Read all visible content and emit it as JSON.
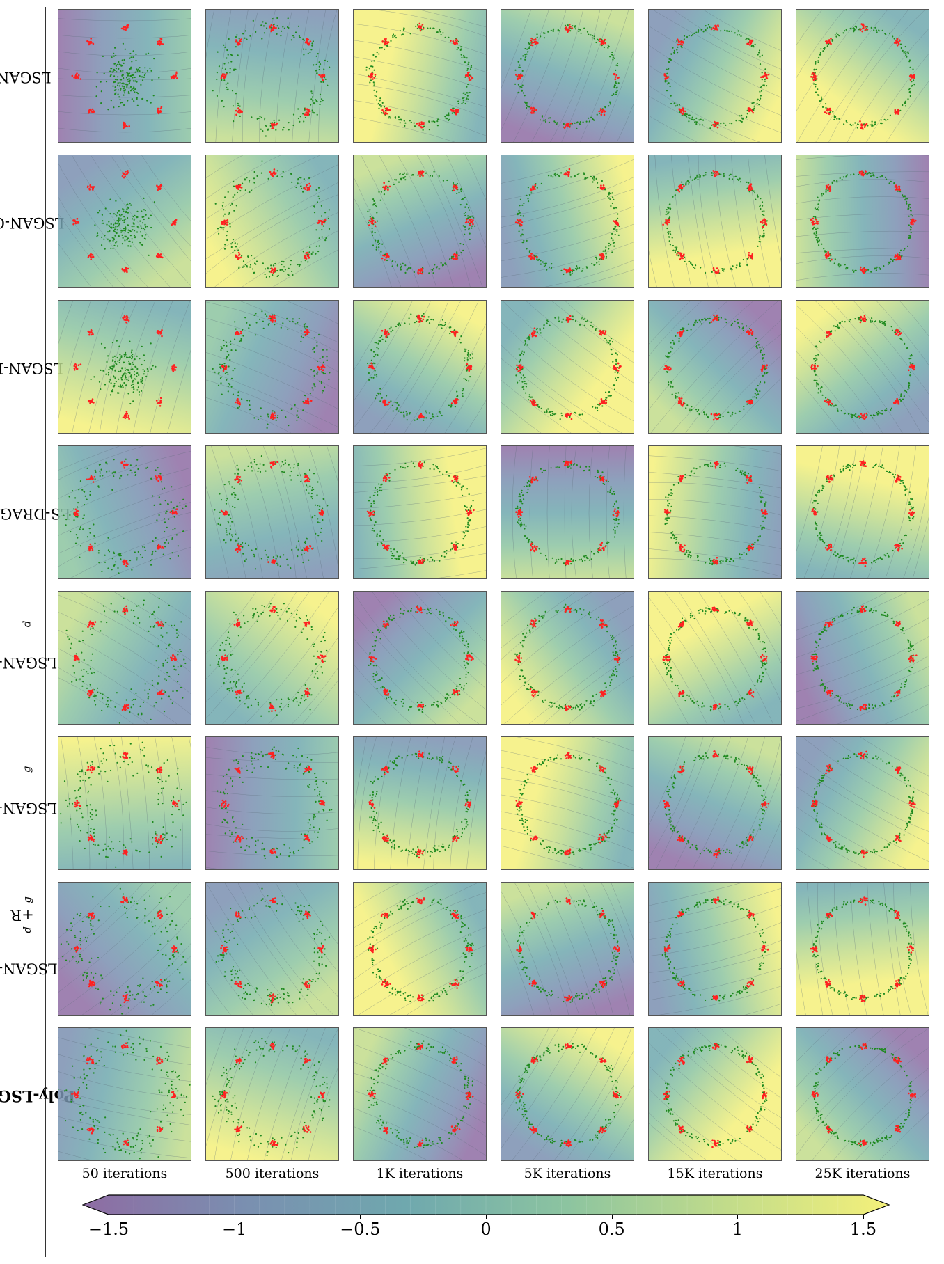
{
  "rows": [
    {
      "label": "LSGAN"
    },
    {
      "label": "LSGAN-GP"
    },
    {
      "label": "LSGAN-LP"
    },
    {
      "label": "LS-DRAGAN"
    },
    {
      "label": "LSGAN-R",
      "sub": "d"
    },
    {
      "label": "LSGAN-R",
      "sub": "g"
    },
    {
      "label": "LSGAN-R",
      "sub": "d",
      "mid": "+R",
      "sub2": "g"
    },
    {
      "label": "Poly-LSGAN",
      "bold": true
    }
  ],
  "columns": [
    "50 iterations",
    "500 iterations",
    "1K iterations",
    "5K iterations",
    "15K iterations",
    "25K iterations"
  ],
  "colorbar": {
    "min": -1.5,
    "max": 1.5,
    "extend": "both",
    "ticks": [
      {
        "value": -1.5,
        "label": "−1.5"
      },
      {
        "value": -1,
        "label": "−1"
      },
      {
        "value": -0.5,
        "label": "−0.5"
      },
      {
        "value": 0,
        "label": "0"
      },
      {
        "value": 0.5,
        "label": "0.5"
      },
      {
        "value": 1,
        "label": "1"
      },
      {
        "value": 1.5,
        "label": "1.5"
      }
    ],
    "colors": [
      "#8e6ca3",
      "#7a8fb0",
      "#6fa8ae",
      "#8cc4a0",
      "#c2dc8a",
      "#f4f07a"
    ]
  },
  "colors": {
    "real_samples": "#ff2020",
    "generated_samples": "#1f8a1f"
  }
}
